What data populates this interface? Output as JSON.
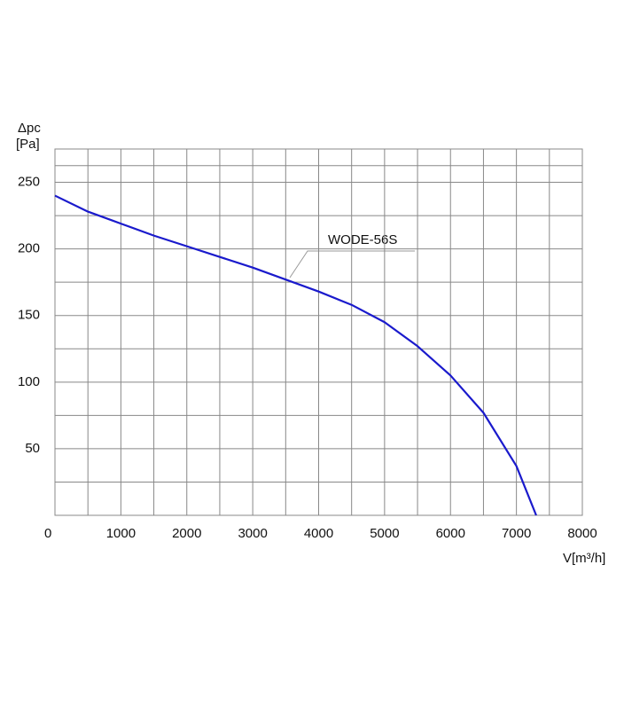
{
  "chart_data": {
    "type": "line",
    "y_label_top": "Δpc",
    "y_label_unit": "[Pa]",
    "x_label": "V[m³/h]",
    "annotation": "WODE-56S",
    "xlim": [
      0,
      8000
    ],
    "xticks": [
      0,
      1000,
      2000,
      3000,
      4000,
      5000,
      6000,
      7000,
      8000
    ],
    "ylim": [
      0,
      275
    ],
    "yticks": [
      50,
      100,
      150,
      200,
      250
    ],
    "grid": true,
    "series": [
      {
        "name": "WODE-56S",
        "color": "#1a1acc",
        "x": [
          0,
          500,
          1000,
          1500,
          2000,
          2500,
          3000,
          3500,
          4000,
          4500,
          5000,
          5500,
          6000,
          6500,
          7000,
          7300
        ],
        "values": [
          240,
          228,
          219,
          210,
          202,
          194,
          186,
          177,
          168,
          158,
          145,
          127,
          105,
          77,
          37,
          0
        ]
      }
    ]
  }
}
